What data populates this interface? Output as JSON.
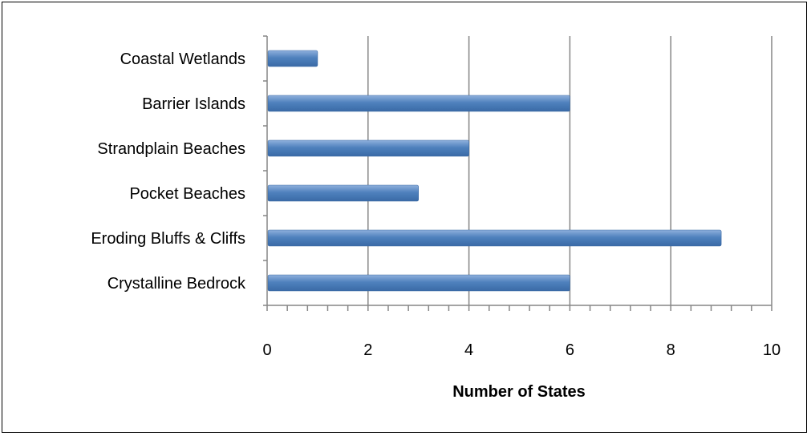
{
  "chart_data": {
    "type": "bar",
    "orientation": "horizontal",
    "categories": [
      "Coastal Wetlands",
      "Barrier Islands",
      "Strandplain Beaches",
      "Pocket Beaches",
      "Eroding Bluffs & Cliffs",
      "Crystalline Bedrock"
    ],
    "values": [
      1,
      6,
      4,
      3,
      9,
      6
    ],
    "xlabel": "Number of States",
    "ylabel": "",
    "xlim": [
      0,
      10
    ],
    "xticks": [
      0,
      2,
      4,
      6,
      8,
      10
    ],
    "minor_tick_step": 0.4,
    "grid": "vertical major gridlines",
    "legend": "none",
    "colors": {
      "bar": "#4f81bd",
      "bar_light": "#8fb0dc",
      "bar_dark": "#3a6aa6",
      "grid": "#868686",
      "axis": "#868686"
    }
  }
}
